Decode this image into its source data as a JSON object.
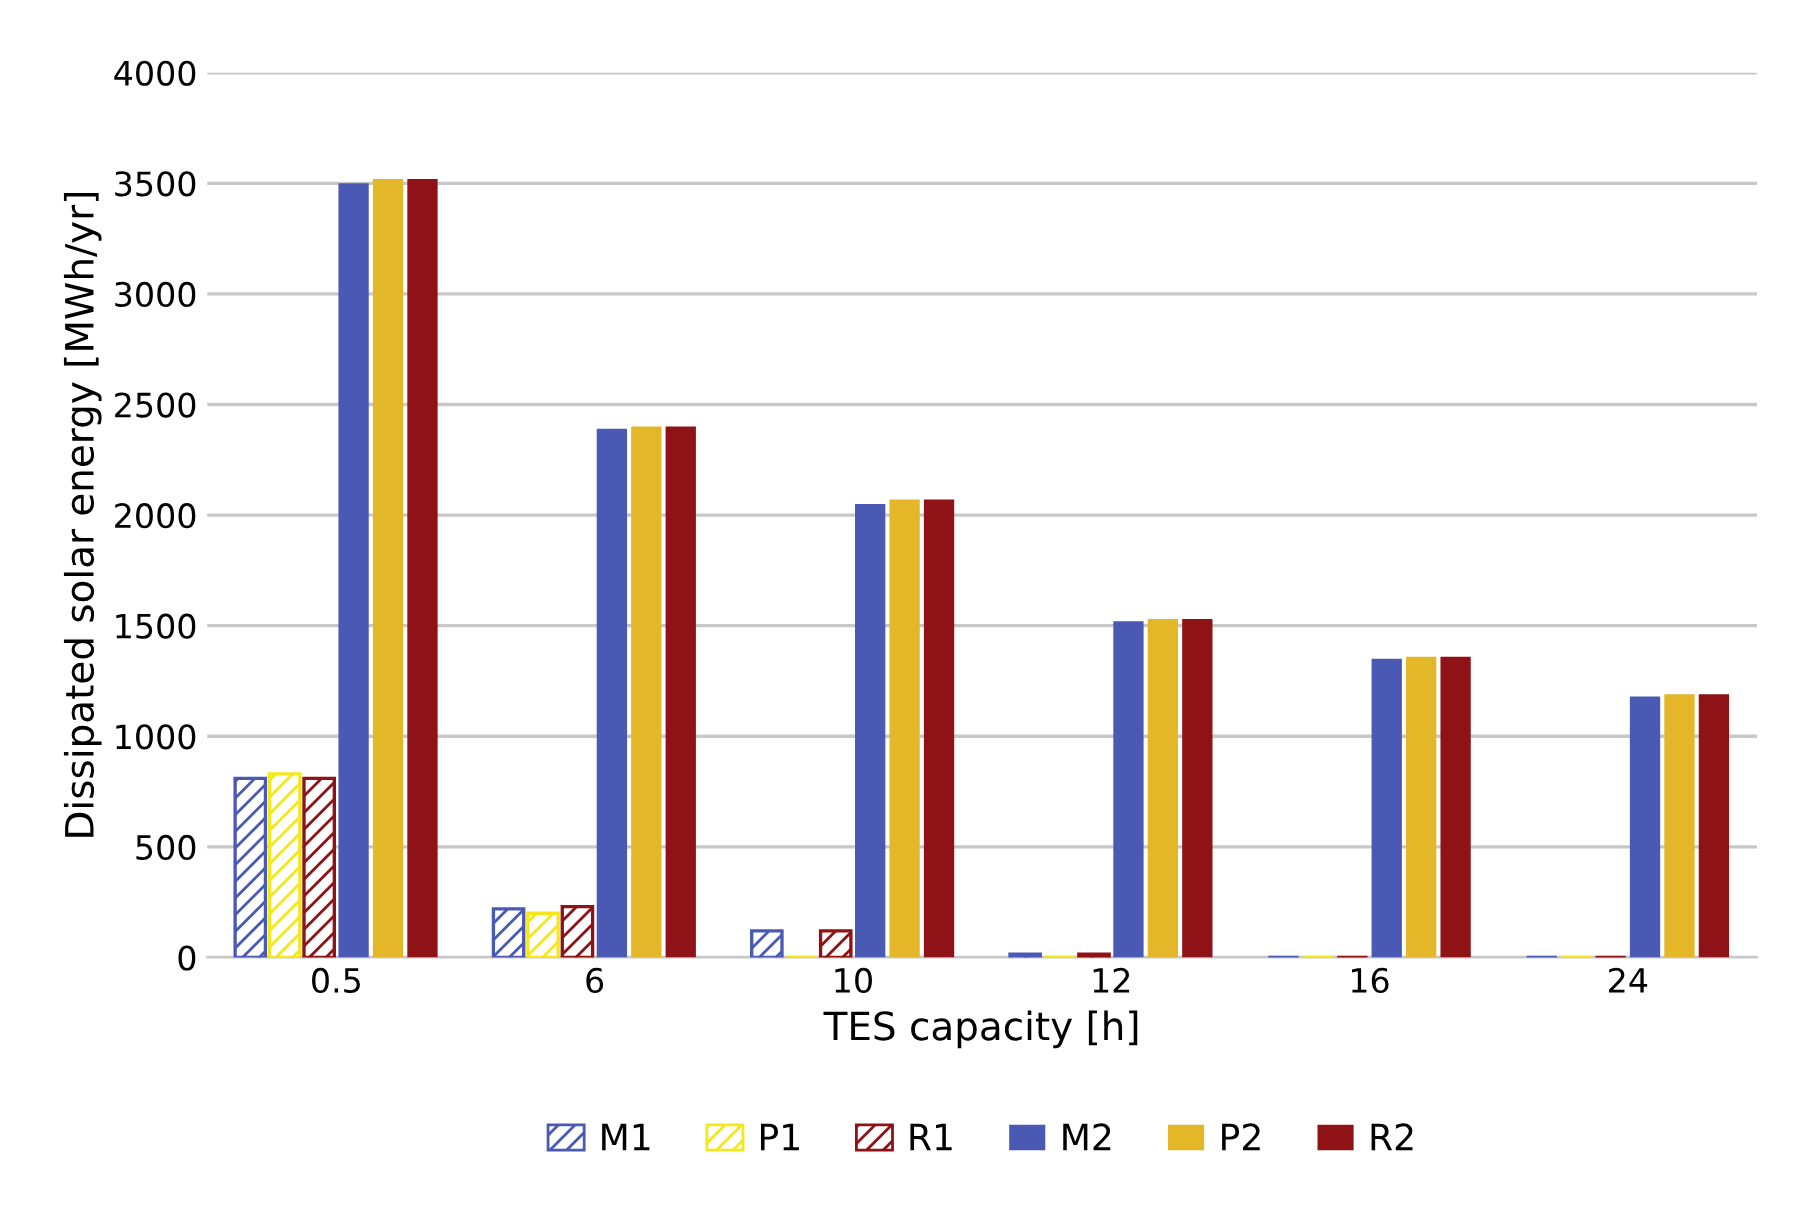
{
  "chart_data": {
    "type": "bar",
    "xlabel": "TES capacity [h]",
    "ylabel": "Dissipated solar energy [MWh/yr]",
    "categories": [
      "0.5",
      "6",
      "10",
      "12",
      "16",
      "24"
    ],
    "series": [
      {
        "name": "M1",
        "color": "#4a5ab4",
        "values": [
          810,
          220,
          120,
          15,
          0,
          0
        ]
      },
      {
        "name": "P1",
        "color": "#f5e81a",
        "values": [
          830,
          200,
          0,
          0,
          0,
          0
        ]
      },
      {
        "name": "R1",
        "color": "#8e1216",
        "values": [
          810,
          230,
          120,
          15,
          0,
          0
        ]
      },
      {
        "name": "M2",
        "color": "#4a5ab4",
        "values": [
          3500,
          2390,
          2050,
          1520,
          1350,
          1180
        ]
      },
      {
        "name": "P2",
        "color": "#e3b728",
        "values": [
          3520,
          2400,
          2070,
          1530,
          1360,
          1190
        ]
      },
      {
        "name": "R2",
        "color": "#8e1216",
        "values": [
          3520,
          2400,
          2070,
          1530,
          1360,
          1190
        ]
      }
    ],
    "ylim": [
      0,
      4000
    ],
    "yticks": [
      0,
      500,
      1000,
      1500,
      2000,
      2500,
      3000,
      3500,
      4000
    ],
    "grid": "y",
    "legend": "bottom"
  }
}
